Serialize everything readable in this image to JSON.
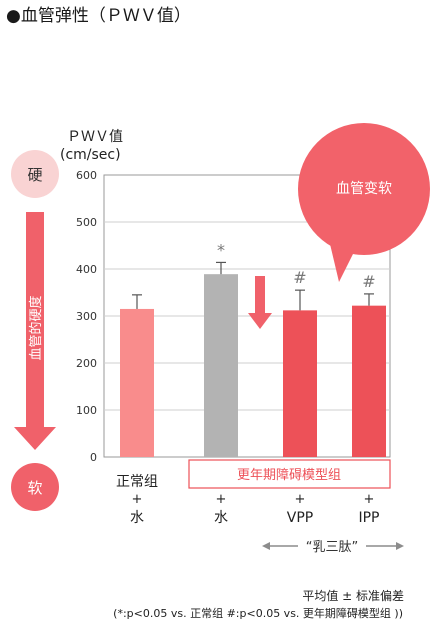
{
  "title": "●血管弹性（ＰＷＶ值）",
  "ylabel_line1": "ＰＷＶ值",
  "ylabel_line2": "(cm/sec)",
  "hard_label": "硬",
  "soft_label": "软",
  "arrow_text": "血管的硬度",
  "bubble_text": "血管变软",
  "group_label": "更年期障碍模型组",
  "peptide_label": "“乳三肽”",
  "footnote_line1": "平均值 ± 标准偏差",
  "footnote_line2": "(*:p<0.05 vs. 正常组 #:p<0.05 vs. 更年期障碍模型组 ))",
  "colors": {
    "light_red": "#f98c8c",
    "gray": "#b3b3b3",
    "red": "#ed5158",
    "bubble": "#f2626a",
    "hard_circle": "#f9d3d3",
    "arrow": "#f0616a"
  },
  "chart_data": {
    "type": "bar",
    "categories": [
      {
        "line1": "正常组",
        "line2": "+",
        "line3": "水"
      },
      {
        "line1": "",
        "line2": "+",
        "line3": "水"
      },
      {
        "line1": "",
        "line2": "+",
        "line3": "VPP"
      },
      {
        "line1": "",
        "line2": "+",
        "line3": "IPP"
      }
    ],
    "values": [
      315,
      389,
      312,
      322
    ],
    "errors": [
      30,
      25,
      43,
      25
    ],
    "markers": [
      "",
      "*",
      "#",
      "#"
    ],
    "bar_colors": [
      "#f98c8c",
      "#b3b3b3",
      "#ed5158",
      "#ed5158"
    ],
    "ylim": [
      0,
      600
    ],
    "yticks": [
      "0",
      "100",
      "200",
      "300",
      "400",
      "500",
      "600"
    ]
  }
}
